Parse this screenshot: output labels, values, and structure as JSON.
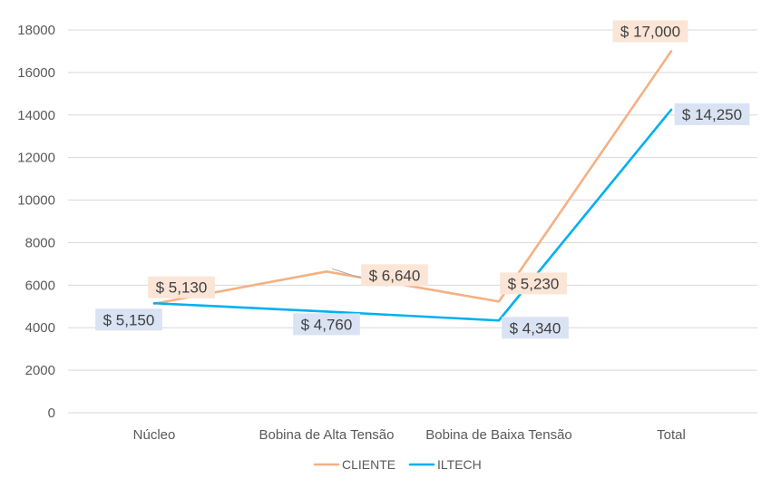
{
  "chart_data": {
    "type": "line",
    "categories": [
      "Núcleo",
      "Bobina de Alta Tensão",
      "Bobina de Baixa Tensão",
      "Total"
    ],
    "ylim": [
      0,
      18000
    ],
    "yticks": [
      0,
      2000,
      4000,
      6000,
      8000,
      10000,
      12000,
      14000,
      16000,
      18000
    ],
    "ytick_labels": [
      "0",
      "2000",
      "4000",
      "6000",
      "8000",
      "10000",
      "12000",
      "14000",
      "16000",
      "18000"
    ],
    "grid": true,
    "legend_position": "bottom",
    "series": [
      {
        "name": "CLIENTE",
        "color": "#F4B183",
        "label_bg": "#FBE5D6",
        "values": [
          5130,
          6640,
          5230,
          17000
        ],
        "data_labels": [
          "$ 5,130",
          "$ 6,640",
          "$ 5,230",
          "$ 17,000"
        ]
      },
      {
        "name": "ILTECH",
        "color": "#00B0F0",
        "label_bg": "#DAE3F3",
        "values": [
          5150,
          4760,
          4340,
          14250
        ],
        "data_labels": [
          "$ 5,150",
          "$ 4,760",
          "$ 4,340",
          "$ 14,250"
        ]
      }
    ]
  }
}
